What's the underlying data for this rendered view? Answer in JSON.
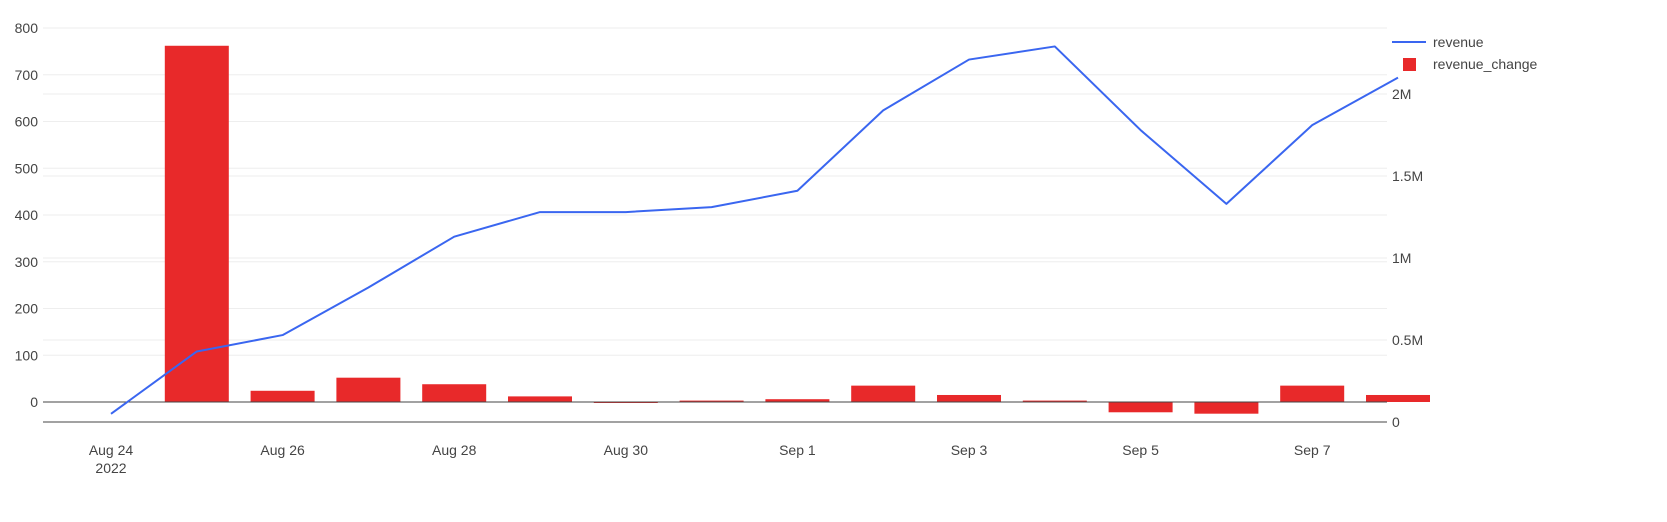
{
  "chart_data": {
    "type": "bar+line",
    "x_dates": [
      "Aug 24",
      "Aug 25",
      "Aug 26",
      "Aug 27",
      "Aug 28",
      "Aug 29",
      "Aug 30",
      "Aug 31",
      "Sep 1",
      "Sep 2",
      "Sep 3",
      "Sep 4",
      "Sep 5",
      "Sep 6",
      "Sep 7",
      "Sep 8"
    ],
    "x_ticks": [
      {
        "label": "Aug 24",
        "sublabel": "2022",
        "index": 0
      },
      {
        "label": "Aug 26",
        "sublabel": "",
        "index": 2
      },
      {
        "label": "Aug 28",
        "sublabel": "",
        "index": 4
      },
      {
        "label": "Aug 30",
        "sublabel": "",
        "index": 6
      },
      {
        "label": "Sep 1",
        "sublabel": "",
        "index": 8
      },
      {
        "label": "Sep 3",
        "sublabel": "",
        "index": 10
      },
      {
        "label": "Sep 5",
        "sublabel": "",
        "index": 12
      },
      {
        "label": "Sep 7",
        "sublabel": "",
        "index": 14
      }
    ],
    "left_axis": {
      "range": [
        -45,
        820
      ],
      "ticks": [
        0,
        100,
        200,
        300,
        400,
        500,
        600,
        700,
        800
      ],
      "tick_labels": [
        "0",
        "100",
        "200",
        "300",
        "400",
        "500",
        "600",
        "700",
        "800"
      ]
    },
    "right_axis": {
      "range": [
        0,
        2500000
      ],
      "ticks": [
        0,
        500000,
        1000000,
        1500000,
        2000000
      ],
      "tick_labels": [
        "0",
        "0.5M",
        "1M",
        "1.5M",
        "2M"
      ]
    },
    "series": [
      {
        "name": "revenue_change",
        "kind": "bar",
        "axis": "left",
        "color": "#e8292a",
        "values": [
          null,
          762,
          24,
          52,
          38,
          12,
          -2,
          3,
          6,
          35,
          15,
          3,
          -22,
          -25,
          35,
          15
        ]
      },
      {
        "name": "revenue",
        "kind": "line",
        "axis": "right",
        "color": "#3a66f0",
        "values": [
          50000,
          430000,
          530000,
          820000,
          1130000,
          1280000,
          1280000,
          1310000,
          1410000,
          1900000,
          2210000,
          2290000,
          1780000,
          1330000,
          1810000,
          2100000
        ]
      }
    ],
    "legend": {
      "placement": "top-right",
      "entries": [
        {
          "name": "revenue",
          "marker": "line",
          "color": "#3a66f0"
        },
        {
          "name": "revenue_change",
          "marker": "square",
          "color": "#e8292a"
        }
      ]
    },
    "grid": true
  }
}
